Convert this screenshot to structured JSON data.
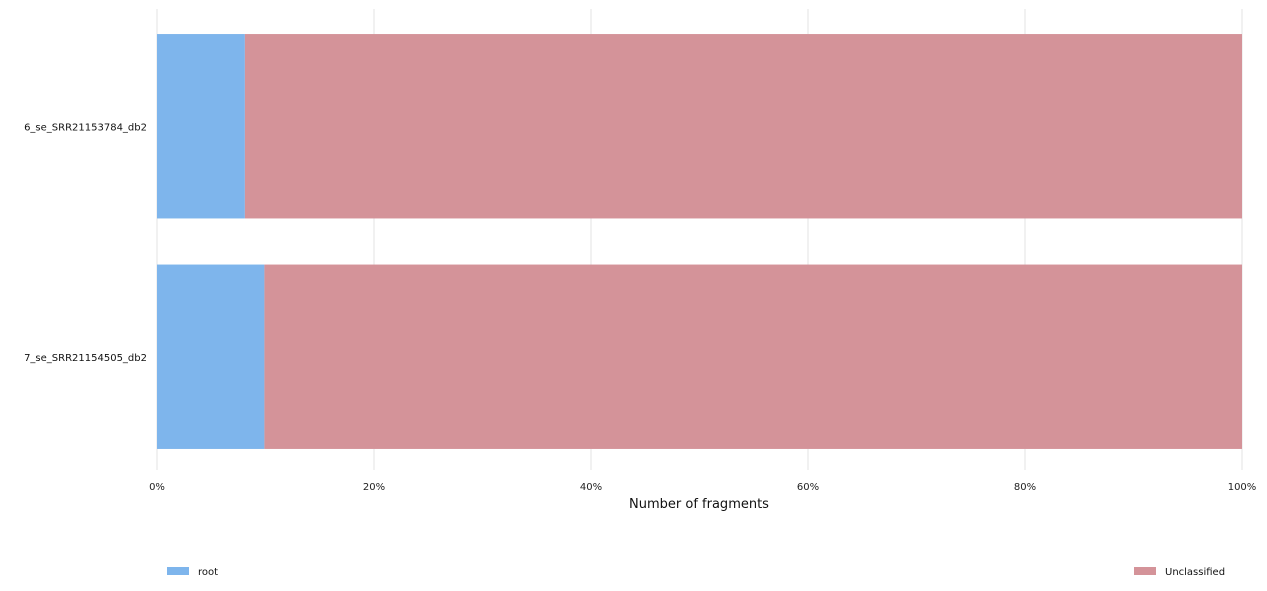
{
  "chart_data": {
    "type": "bar",
    "orientation": "horizontal",
    "stacked": true,
    "normalized": true,
    "categories": [
      "6_se_SRR21153784_db2",
      "7_se_SRR21154505_db2"
    ],
    "series": [
      {
        "name": "root",
        "values": [
          8.1,
          9.9
        ],
        "color": "#7eb5ec"
      },
      {
        "name": "Unclassified",
        "values": [
          91.9,
          90.1
        ],
        "color": "#d49399"
      }
    ],
    "xlabel": "Number of fragments",
    "ylabel": "",
    "xlim": [
      0,
      100
    ],
    "xticks": [
      "0%",
      "20%",
      "40%",
      "60%",
      "80%",
      "100%"
    ],
    "grid": true,
    "legend_position": "bottom"
  }
}
